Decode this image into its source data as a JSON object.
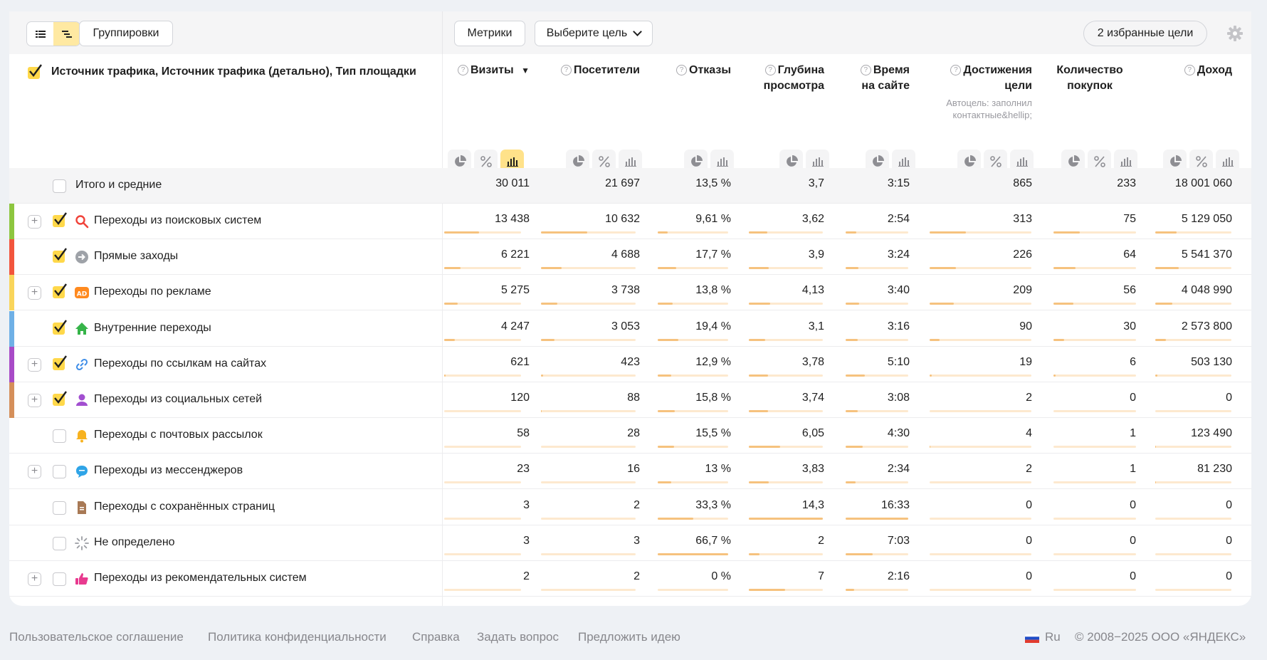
{
  "toolbar": {
    "groupings_label": "Группировки",
    "metrics_label": "Метрики",
    "goal_select_label": "Выберите цель",
    "favorites_label": "2 избранные цели"
  },
  "header": {
    "dimension_title": "Источник трафика, Источник трафика (детально), Тип площадки",
    "columns": [
      {
        "line1": "Визиты",
        "line2": "",
        "sort": "▼"
      },
      {
        "line1": "Посетители",
        "line2": ""
      },
      {
        "line1": "Отказы",
        "line2": ""
      },
      {
        "line1": "Глубина",
        "line2": "просмотра"
      },
      {
        "line1": "Время",
        "line2": "на сайте"
      },
      {
        "line1": "Достижения",
        "line2": "цели",
        "note": "Автоцель: заполнил контактные&hellip;"
      },
      {
        "line1": "Количество",
        "line2": "покупок"
      },
      {
        "line1": "Доход",
        "line2": ""
      }
    ]
  },
  "total": {
    "label": "Итого и средние",
    "values": [
      "30 011",
      "21 697",
      "13,5 %",
      "3,7",
      "3:15",
      "865",
      "233",
      "18 001 060"
    ]
  },
  "rows": [
    {
      "label": "Переходы из поисковых систем",
      "icon": "search-icon",
      "color": "#8dc63f",
      "expandable": true,
      "checked": true,
      "values": [
        "13 438",
        "10 632",
        "9,61 %",
        "3,62",
        "2:54",
        "313",
        "75",
        "5 129 050"
      ],
      "shares": [
        0.45,
        0.49,
        0.14,
        0.25,
        0.17,
        0.36,
        0.32,
        0.28
      ]
    },
    {
      "label": "Прямые заходы",
      "icon": "direct-entry-icon",
      "color": "#f2553d",
      "expandable": false,
      "checked": true,
      "values": [
        "6 221",
        "4 688",
        "17,7 %",
        "3,9",
        "3:24",
        "226",
        "64",
        "5 541 370"
      ],
      "shares": [
        0.21,
        0.22,
        0.26,
        0.27,
        0.2,
        0.26,
        0.27,
        0.31
      ]
    },
    {
      "label": "Переходы по рекламе",
      "icon": "ad-icon",
      "color": "#f9d55b",
      "expandable": true,
      "checked": true,
      "values": [
        "5 275",
        "3 738",
        "13,8 %",
        "4,13",
        "3:40",
        "209",
        "56",
        "4 048 990"
      ],
      "shares": [
        0.18,
        0.17,
        0.21,
        0.29,
        0.22,
        0.24,
        0.24,
        0.22
      ]
    },
    {
      "label": "Внутренние переходы",
      "icon": "home-icon",
      "color": "#6fb0e6",
      "expandable": false,
      "checked": true,
      "values": [
        "4 247",
        "3 053",
        "19,4 %",
        "3,1",
        "3:16",
        "90",
        "30",
        "2 573 800"
      ],
      "shares": [
        0.14,
        0.14,
        0.29,
        0.22,
        0.19,
        0.1,
        0.13,
        0.14
      ]
    },
    {
      "label": "Переходы по ссылкам на сайтах",
      "icon": "link-icon",
      "color": "#a84bc7",
      "expandable": true,
      "checked": true,
      "values": [
        "621",
        "423",
        "12,9 %",
        "3,78",
        "5:10",
        "19",
        "6",
        "503 130"
      ],
      "shares": [
        0.02,
        0.02,
        0.19,
        0.26,
        0.31,
        0.02,
        0.03,
        0.03
      ]
    },
    {
      "label": "Переходы из социальных сетей",
      "icon": "social-icon",
      "color": "#d58f5a",
      "expandable": true,
      "checked": true,
      "values": [
        "120",
        "88",
        "15,8 %",
        "3,74",
        "3:08",
        "2",
        "0",
        "0"
      ],
      "shares": [
        0.004,
        0.004,
        0.24,
        0.26,
        0.19,
        0.002,
        0,
        0
      ]
    },
    {
      "label": "Переходы с почтовых рассылок",
      "icon": "bell-icon",
      "color": "",
      "expandable": false,
      "checked": false,
      "values": [
        "58",
        "28",
        "15,5 %",
        "6,05",
        "4:30",
        "4",
        "1",
        "123 490"
      ],
      "shares": [
        0.002,
        0.001,
        0.23,
        0.42,
        0.27,
        0.005,
        0.004,
        0.007
      ]
    },
    {
      "label": "Переходы из мессенджеров",
      "icon": "chat-icon",
      "color": "",
      "expandable": true,
      "checked": false,
      "values": [
        "23",
        "16",
        "13 %",
        "3,83",
        "2:34",
        "2",
        "1",
        "81 230"
      ],
      "shares": [
        0.001,
        0.001,
        0.19,
        0.27,
        0.16,
        0.002,
        0.004,
        0.005
      ]
    },
    {
      "label": "Переходы с сохранённых страниц",
      "icon": "saved-page-icon",
      "color": "",
      "expandable": false,
      "checked": false,
      "values": [
        "3",
        "2",
        "33,3 %",
        "14,3",
        "16:33",
        "0",
        "0",
        "0"
      ],
      "shares": [
        0,
        0,
        0.5,
        1,
        1,
        0,
        0,
        0
      ]
    },
    {
      "label": "Не определено",
      "icon": "undefined-icon",
      "color": "",
      "expandable": false,
      "checked": false,
      "values": [
        "3",
        "3",
        "66,7 %",
        "2",
        "7:03",
        "0",
        "0",
        "0"
      ],
      "shares": [
        0,
        0,
        1,
        0.14,
        0.43,
        0,
        0,
        0
      ]
    },
    {
      "label": "Переходы из рекомендательных систем",
      "icon": "thumbs-up-icon",
      "color": "",
      "expandable": true,
      "checked": false,
      "values": [
        "2",
        "2",
        "0 %",
        "7",
        "2:16",
        "0",
        "0",
        "0"
      ],
      "shares": [
        0,
        0,
        0,
        0.49,
        0.14,
        0,
        0,
        0
      ]
    }
  ],
  "footer": {
    "links": [
      "Пользовательское соглашение",
      "Политика конфиденциальности",
      "Справка",
      "Задать вопрос",
      "Предложить идею"
    ],
    "lang": "Ru",
    "copyright": "© 2008−2025 ООО «ЯНДЕКС»"
  }
}
